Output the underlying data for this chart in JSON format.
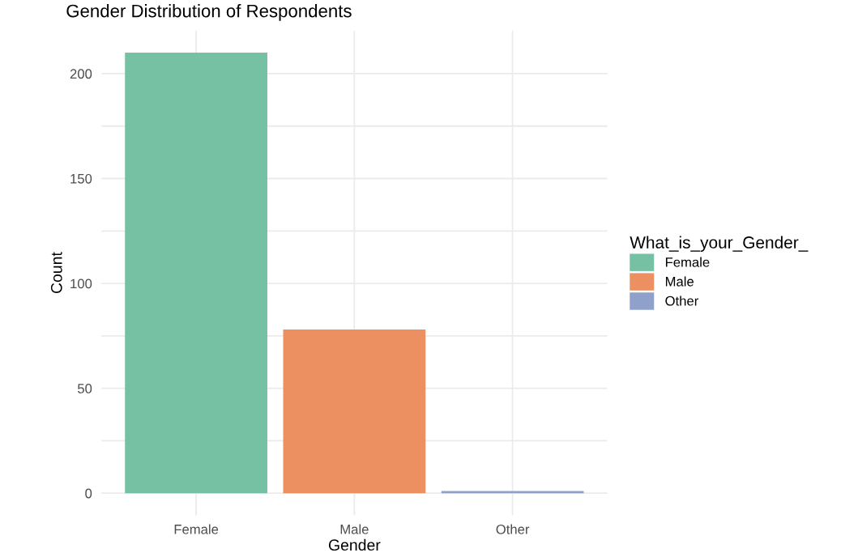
{
  "chart_data": {
    "type": "bar",
    "title": "Gender Distribution of Respondents",
    "xlabel": "Gender",
    "ylabel": "Count",
    "legend_title": "What_is_your_Gender_",
    "categories": [
      "Female",
      "Male",
      "Other"
    ],
    "series": [
      {
        "name": "Female",
        "color": "#76c0a3",
        "values": [
          210,
          null,
          null
        ]
      },
      {
        "name": "Male",
        "color": "#ec9062",
        "values": [
          null,
          78,
          null
        ]
      },
      {
        "name": "Other",
        "color": "#8fa0cb",
        "values": [
          null,
          null,
          1
        ]
      }
    ],
    "ylim": [
      -10.5,
      220.5
    ],
    "yticks": [
      0,
      {
        "value": 25,
        "label": null
      },
      50,
      {
        "value": 75,
        "label": null
      },
      100,
      {
        "value": 125,
        "label": null
      },
      150,
      {
        "value": 175,
        "label": null
      },
      200
    ],
    "grid": true,
    "legend": "right"
  }
}
